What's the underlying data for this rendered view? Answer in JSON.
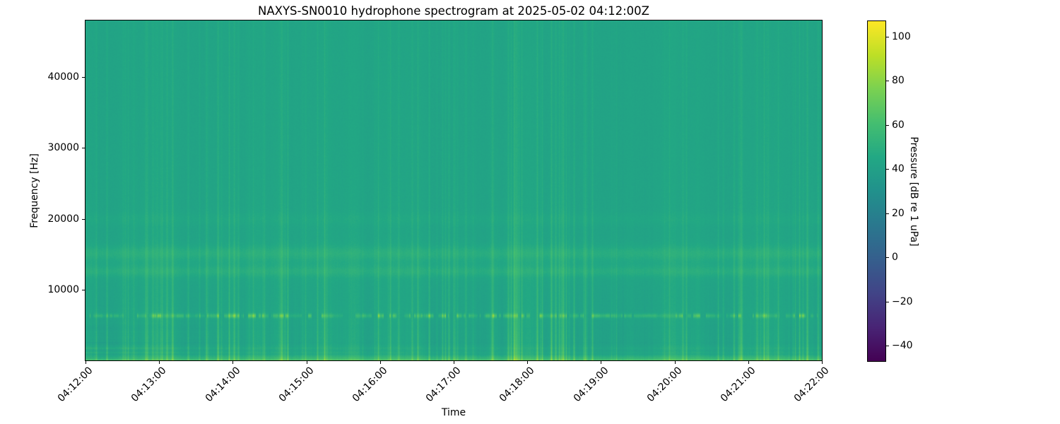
{
  "chart_data": {
    "type": "heatmap",
    "variant": "spectrogram",
    "title": "NAXYS-SN0010 hydrophone spectrogram at 2025-05-02 04:12:00Z",
    "xlabel": "Time",
    "ylabel": "Frequency [Hz]",
    "x_tick_labels": [
      "04:12:00",
      "04:13:00",
      "04:14:00",
      "04:15:00",
      "04:16:00",
      "04:17:00",
      "04:18:00",
      "04:19:00",
      "04:20:00",
      "04:21:00",
      "04:22:00"
    ],
    "y_ticks_hz": [
      40000,
      30000,
      20000,
      10000
    ],
    "freq_range_hz": [
      0,
      48000
    ],
    "time_span_minutes": 10,
    "colormap": "viridis",
    "grid": false,
    "colorbar": {
      "label": "Pressure [dB re 1 uPa]",
      "vmin": -47,
      "vmax": 107,
      "ticks": [
        {
          "label": "100",
          "value": 100
        },
        {
          "label": "80",
          "value": 80
        },
        {
          "label": "60",
          "value": 60
        },
        {
          "label": "40",
          "value": 40
        },
        {
          "label": "20",
          "value": 20
        },
        {
          "label": "0",
          "value": 0
        },
        {
          "label": "−20",
          "value": -20
        },
        {
          "label": "−40",
          "value": -40
        }
      ]
    },
    "features": [
      {
        "name": "broadband-background",
        "freq_hz": [
          0,
          48000
        ],
        "level_db": 43
      },
      {
        "name": "low-frequency-noise-floor",
        "freq_hz": [
          0,
          900
        ],
        "level_db": [
          55,
          68
        ]
      },
      {
        "name": "horizontal-striation-band",
        "freq_hz": [
          900,
          9000
        ],
        "level_db": [
          43,
          52
        ],
        "note": "strongest near 04:12:00-04:12:45"
      },
      {
        "name": "tonal-pulse-train",
        "freq_hz": [
          6050,
          6650
        ],
        "level_db": [
          55,
          80
        ],
        "note": "irregular bright dashes across full record"
      },
      {
        "name": "mid-frequency-band-1",
        "freq_hz": [
          11800,
          13400
        ],
        "level_db": [
          47,
          58
        ]
      },
      {
        "name": "mid-frequency-band-2",
        "freq_hz": [
          14300,
          16200
        ],
        "level_db": [
          48,
          60
        ]
      },
      {
        "name": "faint-band",
        "freq_hz": [
          19000,
          21000
        ],
        "level_db": [
          44,
          48
        ]
      },
      {
        "name": "broadband-vertical-transients",
        "freq_hz": [
          0,
          48000
        ],
        "level_db": [
          46,
          70
        ],
        "note": "clusters near 04:13, 04:14:40-04:15:20, 04:17:30-04:19:00, 04:20:30-04:22:00"
      }
    ],
    "render": {
      "seed": 1337,
      "base_db": 43.2,
      "low_lift_db": 4,
      "low_lift_max_hz": 2600,
      "bottom_boost_db": 20,
      "bottom_max_hz": 900,
      "bands": [
        {
          "center": 12600,
          "sigma": 700,
          "amp": 4.5
        },
        {
          "center": 15200,
          "sigma": 900,
          "amp": 5
        },
        {
          "center": 13800,
          "sigma": 2500,
          "amp": 2
        },
        {
          "center": 20000,
          "sigma": 900,
          "amp": 2
        }
      ],
      "tonal": {
        "center": 6350,
        "sigma": 300
      },
      "striation_decay_hz": 11000,
      "activity_windows": [
        [
          0.1,
          0.2,
          1.6
        ],
        [
          0.26,
          0.34,
          1.5
        ],
        [
          0.55,
          0.7,
          2.2
        ],
        [
          0.85,
          1.0,
          1.7
        ]
      ]
    }
  }
}
